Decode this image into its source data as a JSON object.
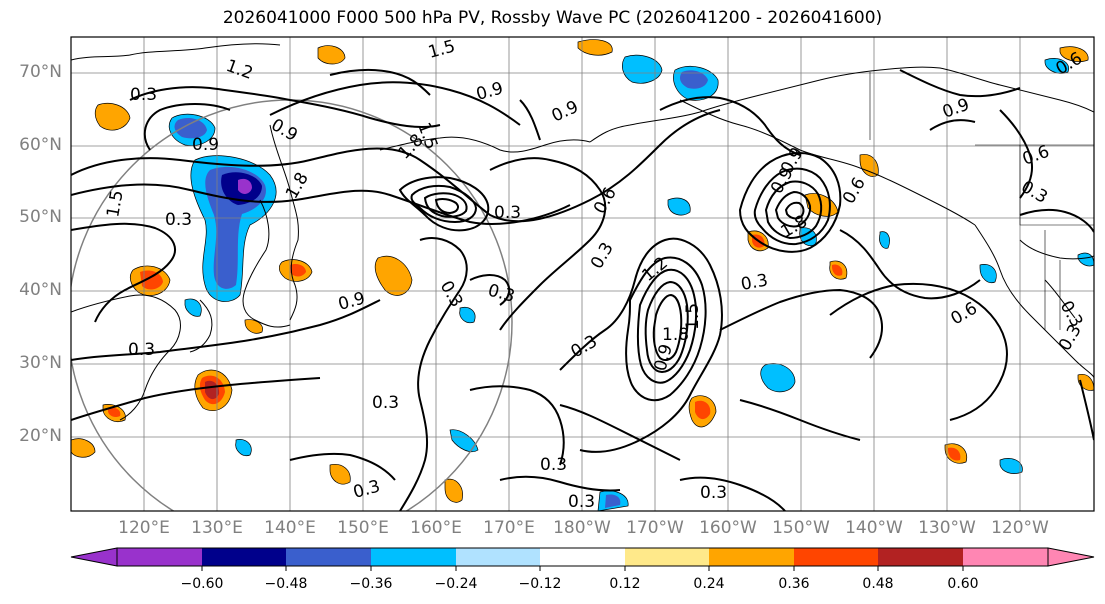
{
  "title": "2026041000 F000 500 hPa PV, Rossby Wave PC (2026041200 - 2026041600)",
  "lat_labels": [
    "70°N",
    "60°N",
    "50°N",
    "40°N",
    "30°N",
    "20°N"
  ],
  "lon_labels": [
    "120°E",
    "130°E",
    "140°E",
    "150°E",
    "160°E",
    "170°E",
    "180°W",
    "170°W",
    "160°W",
    "150°W",
    "140°W",
    "130°W",
    "120°W"
  ],
  "contour_labels": [
    "0.3",
    "0.6",
    "0.9",
    "1.2",
    "1.5",
    "1.8"
  ],
  "colorbar": {
    "ticks": [
      "−0.60",
      "−0.48",
      "−0.36",
      "−0.24",
      "−0.12",
      "0.12",
      "0.24",
      "0.36",
      "0.48",
      "0.60"
    ],
    "colors": [
      "#9932cc",
      "#00008b",
      "#3a5fcd",
      "#00bfff",
      "#b0e2ff",
      "#ffffff",
      "#ffe98a",
      "#ffa500",
      "#ff4500",
      "#b22222",
      "#ff86b3"
    ]
  }
}
